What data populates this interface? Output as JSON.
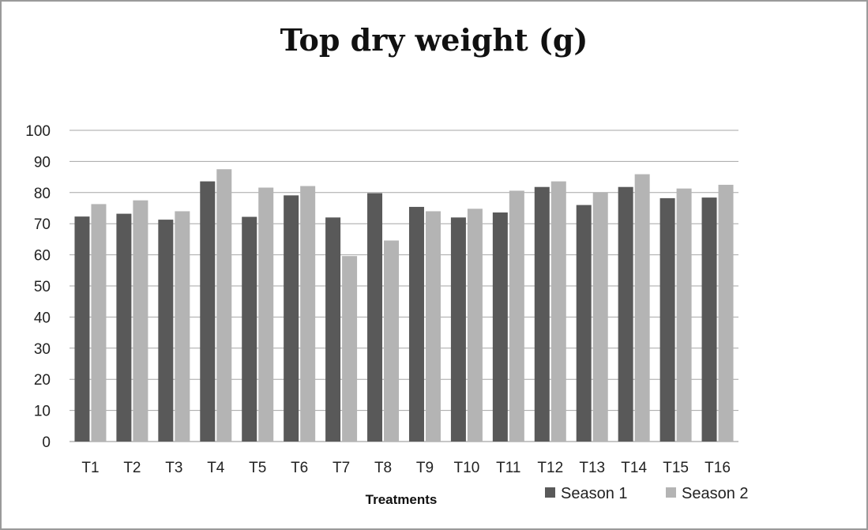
{
  "chart_data": {
    "type": "bar",
    "title": "Top dry weight (g)",
    "xlabel": "Treatments",
    "ylabel": "",
    "ylim": [
      0,
      100
    ],
    "yticks": [
      0,
      10,
      20,
      30,
      40,
      50,
      60,
      70,
      80,
      90,
      100
    ],
    "grid": true,
    "legend": "bottom-right",
    "categories": [
      "T1",
      "T2",
      "T3",
      "T4",
      "T5",
      "T6",
      "T7",
      "T8",
      "T9",
      "T10",
      "T11",
      "T12",
      "T13",
      "T14",
      "T15",
      "T16"
    ],
    "series": [
      {
        "name": "Season 1",
        "color": "#595959",
        "values": [
          72.3,
          73.2,
          71.3,
          83.6,
          72.2,
          79.1,
          72.0,
          79.8,
          75.4,
          72.0,
          73.6,
          81.8,
          76.0,
          81.8,
          78.2,
          78.4
        ]
      },
      {
        "name": "Season 2",
        "color": "#b4b4b4",
        "values": [
          76.3,
          77.5,
          74.0,
          87.5,
          81.6,
          82.1,
          59.6,
          64.6,
          74.0,
          74.8,
          80.6,
          83.6,
          80.0,
          85.9,
          81.3,
          82.5
        ]
      }
    ]
  }
}
